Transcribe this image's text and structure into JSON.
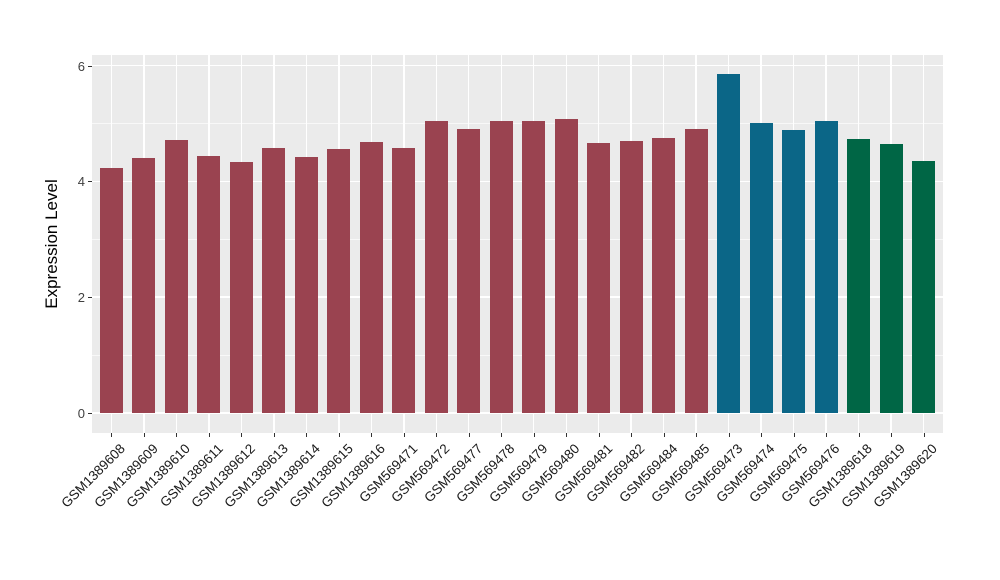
{
  "chart_data": {
    "type": "bar",
    "ylabel": "Expression Level",
    "xlabel": "",
    "ylim": [
      0,
      6
    ],
    "yticks": [
      0,
      2,
      4,
      6
    ],
    "yminorticks": [
      1,
      3,
      5
    ],
    "grid": "on",
    "legend": "none",
    "panel_background": "#EBEBEB",
    "gridline_color": "#FFFFFF",
    "categories": [
      "GSM1389608",
      "GSM1389609",
      "GSM1389610",
      "GSM1389611",
      "GSM1389612",
      "GSM1389613",
      "GSM1389614",
      "GSM1389615",
      "GSM1389616",
      "GSM569471",
      "GSM569472",
      "GSM569477",
      "GSM569478",
      "GSM569479",
      "GSM569480",
      "GSM569481",
      "GSM569482",
      "GSM569484",
      "GSM569485",
      "GSM569473",
      "GSM569474",
      "GSM569475",
      "GSM569476",
      "GSM1389618",
      "GSM1389619",
      "GSM1389620"
    ],
    "values": [
      4.24,
      4.41,
      4.71,
      4.44,
      4.33,
      4.58,
      4.42,
      4.56,
      4.68,
      4.58,
      5.05,
      4.91,
      5.04,
      5.05,
      5.08,
      4.67,
      4.7,
      4.75,
      4.9,
      5.86,
      5.01,
      4.89,
      5.04,
      4.73,
      4.64,
      4.36
    ],
    "bar_colors": [
      "#9A4350",
      "#9A4350",
      "#9A4350",
      "#9A4350",
      "#9A4350",
      "#9A4350",
      "#9A4350",
      "#9A4350",
      "#9A4350",
      "#9A4350",
      "#9A4350",
      "#9A4350",
      "#9A4350",
      "#9A4350",
      "#9A4350",
      "#9A4350",
      "#9A4350",
      "#9A4350",
      "#9A4350",
      "#0B6687",
      "#0B6687",
      "#0B6687",
      "#0B6687",
      "#006645",
      "#006645",
      "#006645"
    ],
    "group_colors": {
      "group_1": "#9A4350",
      "group_2": "#0B6687",
      "group_3": "#006645"
    }
  }
}
